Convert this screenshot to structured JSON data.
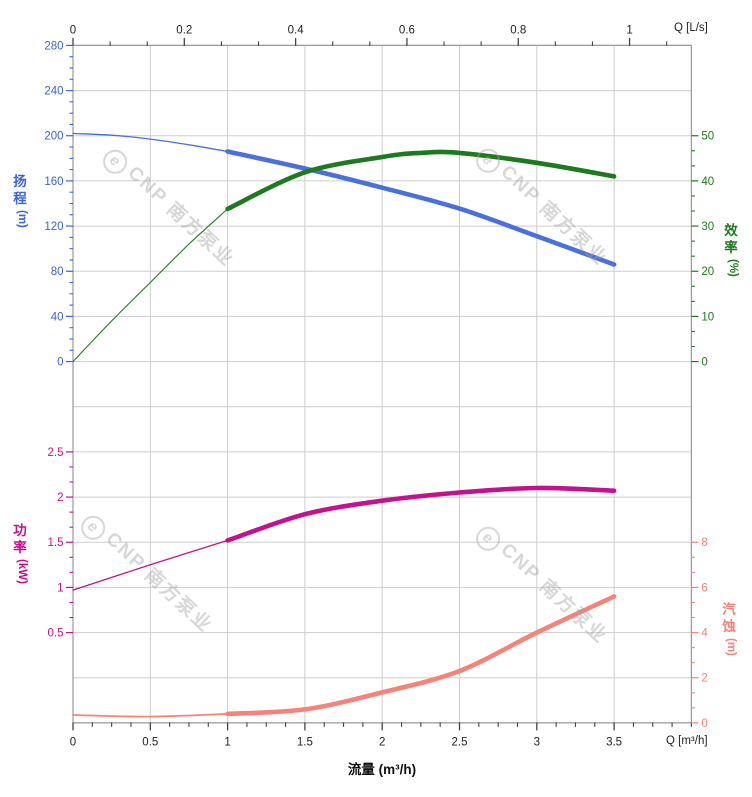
{
  "watermark": {
    "logo_char": "e",
    "text": "CNP 南方泵业"
  },
  "chart_data": {
    "type": "line",
    "title": "",
    "grid": {
      "color": "#cdcdcd",
      "border_color": "#9a9a9a",
      "tick_color": "#444444"
    },
    "x_bottom": {
      "label": "流量 (m³/h)",
      "corner_label": "Q [m³/h]",
      "unit": "m³/h",
      "range": [
        0,
        4
      ],
      "major_values": [
        0,
        0.5,
        1,
        1.5,
        2,
        2.5,
        3,
        3.5
      ],
      "major_labels": [
        "0",
        "0.5",
        "1",
        "1.5",
        "2",
        "2.5",
        "3",
        "3.5"
      ],
      "minor_step": 0.125,
      "color": "#222222"
    },
    "x_top": {
      "corner_label": "Q [L/s]",
      "unit": "L/s",
      "range": [
        0,
        1.1111
      ],
      "to_m3h": 3.6,
      "major_values": [
        0,
        0.2,
        0.4,
        0.6,
        0.8,
        1
      ],
      "major_labels": [
        "0",
        "0.2",
        "0.4",
        "0.6",
        "0.8",
        "1"
      ],
      "minor_step": 0.0666667,
      "color": "#222222"
    },
    "y_axes": [
      {
        "id": "head",
        "side": "left",
        "title": "扬程",
        "unit": "(m)",
        "color": "#3c63d9",
        "major_values": [
          0,
          40,
          80,
          120,
          160,
          200,
          240,
          280
        ],
        "major_labels": [
          "0",
          "40",
          "80",
          "120",
          "160",
          "200",
          "240",
          "280"
        ],
        "minor_step": 10,
        "minor_range": [
          0,
          280
        ]
      },
      {
        "id": "efficiency",
        "side": "right",
        "title": "效率",
        "unit": "(%)",
        "color": "#1e7a1e",
        "major_values": [
          0,
          10,
          20,
          30,
          40,
          50
        ],
        "major_labels": [
          "0",
          "10",
          "20",
          "30",
          "40",
          "50"
        ],
        "minor_step": 3.3333333,
        "minor_range": [
          0,
          50
        ]
      },
      {
        "id": "power",
        "side": "left",
        "title": "功率",
        "unit": "(kW)",
        "color": "#c5108d",
        "major_values": [
          0.5,
          1,
          1.5,
          2,
          2.5
        ],
        "major_labels": [
          "0.5",
          "1",
          "1.5",
          "2",
          "2.5"
        ],
        "minor_step": 0.1666667,
        "minor_range": [
          0.5,
          2.5
        ]
      },
      {
        "id": "npsh",
        "side": "right",
        "title": "汽蚀",
        "unit": "(m)",
        "color": "#f5837a",
        "major_values": [
          0,
          2,
          4,
          6,
          8
        ],
        "major_labels": [
          "0",
          "2",
          "4",
          "6",
          "8"
        ],
        "minor_step": 0.6666667,
        "minor_range": [
          0,
          8
        ]
      }
    ],
    "series": [
      {
        "name": "head",
        "axis": "head",
        "color": "#4a70dc",
        "thick_from": 1,
        "points": [
          [
            0,
            202
          ],
          [
            0.25,
            200.5
          ],
          [
            0.5,
            197
          ],
          [
            0.75,
            192
          ],
          [
            1,
            186
          ],
          [
            1.5,
            171
          ],
          [
            2,
            154
          ],
          [
            2.5,
            135.5
          ],
          [
            3,
            111
          ],
          [
            3.5,
            86
          ]
        ]
      },
      {
        "name": "efficiency",
        "axis": "efficiency",
        "color": "#1e7a1e",
        "thick_from": 1,
        "points": [
          [
            0,
            0
          ],
          [
            0.25,
            9
          ],
          [
            0.5,
            17.5
          ],
          [
            0.75,
            26
          ],
          [
            1,
            33.8
          ],
          [
            1.5,
            41.9
          ],
          [
            2,
            45.3
          ],
          [
            2.25,
            46.2
          ],
          [
            2.5,
            46.2
          ],
          [
            3,
            44
          ],
          [
            3.5,
            41
          ]
        ]
      },
      {
        "name": "power",
        "axis": "power",
        "color": "#c4128e",
        "thick_from": 1,
        "points": [
          [
            0,
            0.97
          ],
          [
            0.5,
            1.25
          ],
          [
            1,
            1.52
          ],
          [
            1.5,
            1.81
          ],
          [
            2,
            1.96
          ],
          [
            2.5,
            2.05
          ],
          [
            3,
            2.1
          ],
          [
            3.5,
            2.07
          ]
        ]
      },
      {
        "name": "npsh",
        "axis": "npsh",
        "color": "#f5837a",
        "thick_from": 1,
        "points": [
          [
            0,
            0.35
          ],
          [
            0.5,
            0.28
          ],
          [
            1,
            0.4
          ],
          [
            1.5,
            0.6
          ],
          [
            2,
            1.35
          ],
          [
            2.5,
            2.3
          ],
          [
            3,
            4
          ],
          [
            3.5,
            5.6
          ]
        ]
      }
    ]
  }
}
